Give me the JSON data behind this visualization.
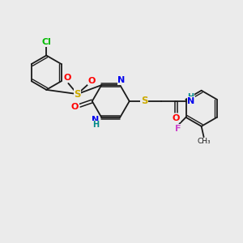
{
  "background_color": "#ebebeb",
  "bond_color": "#1a1a1a",
  "atom_colors": {
    "Cl": "#00bb00",
    "O": "#ff0000",
    "S": "#ccaa00",
    "N": "#0000ee",
    "H": "#008888",
    "F": "#cc44cc"
  },
  "figsize": [
    3.0,
    3.0
  ],
  "dpi": 100
}
